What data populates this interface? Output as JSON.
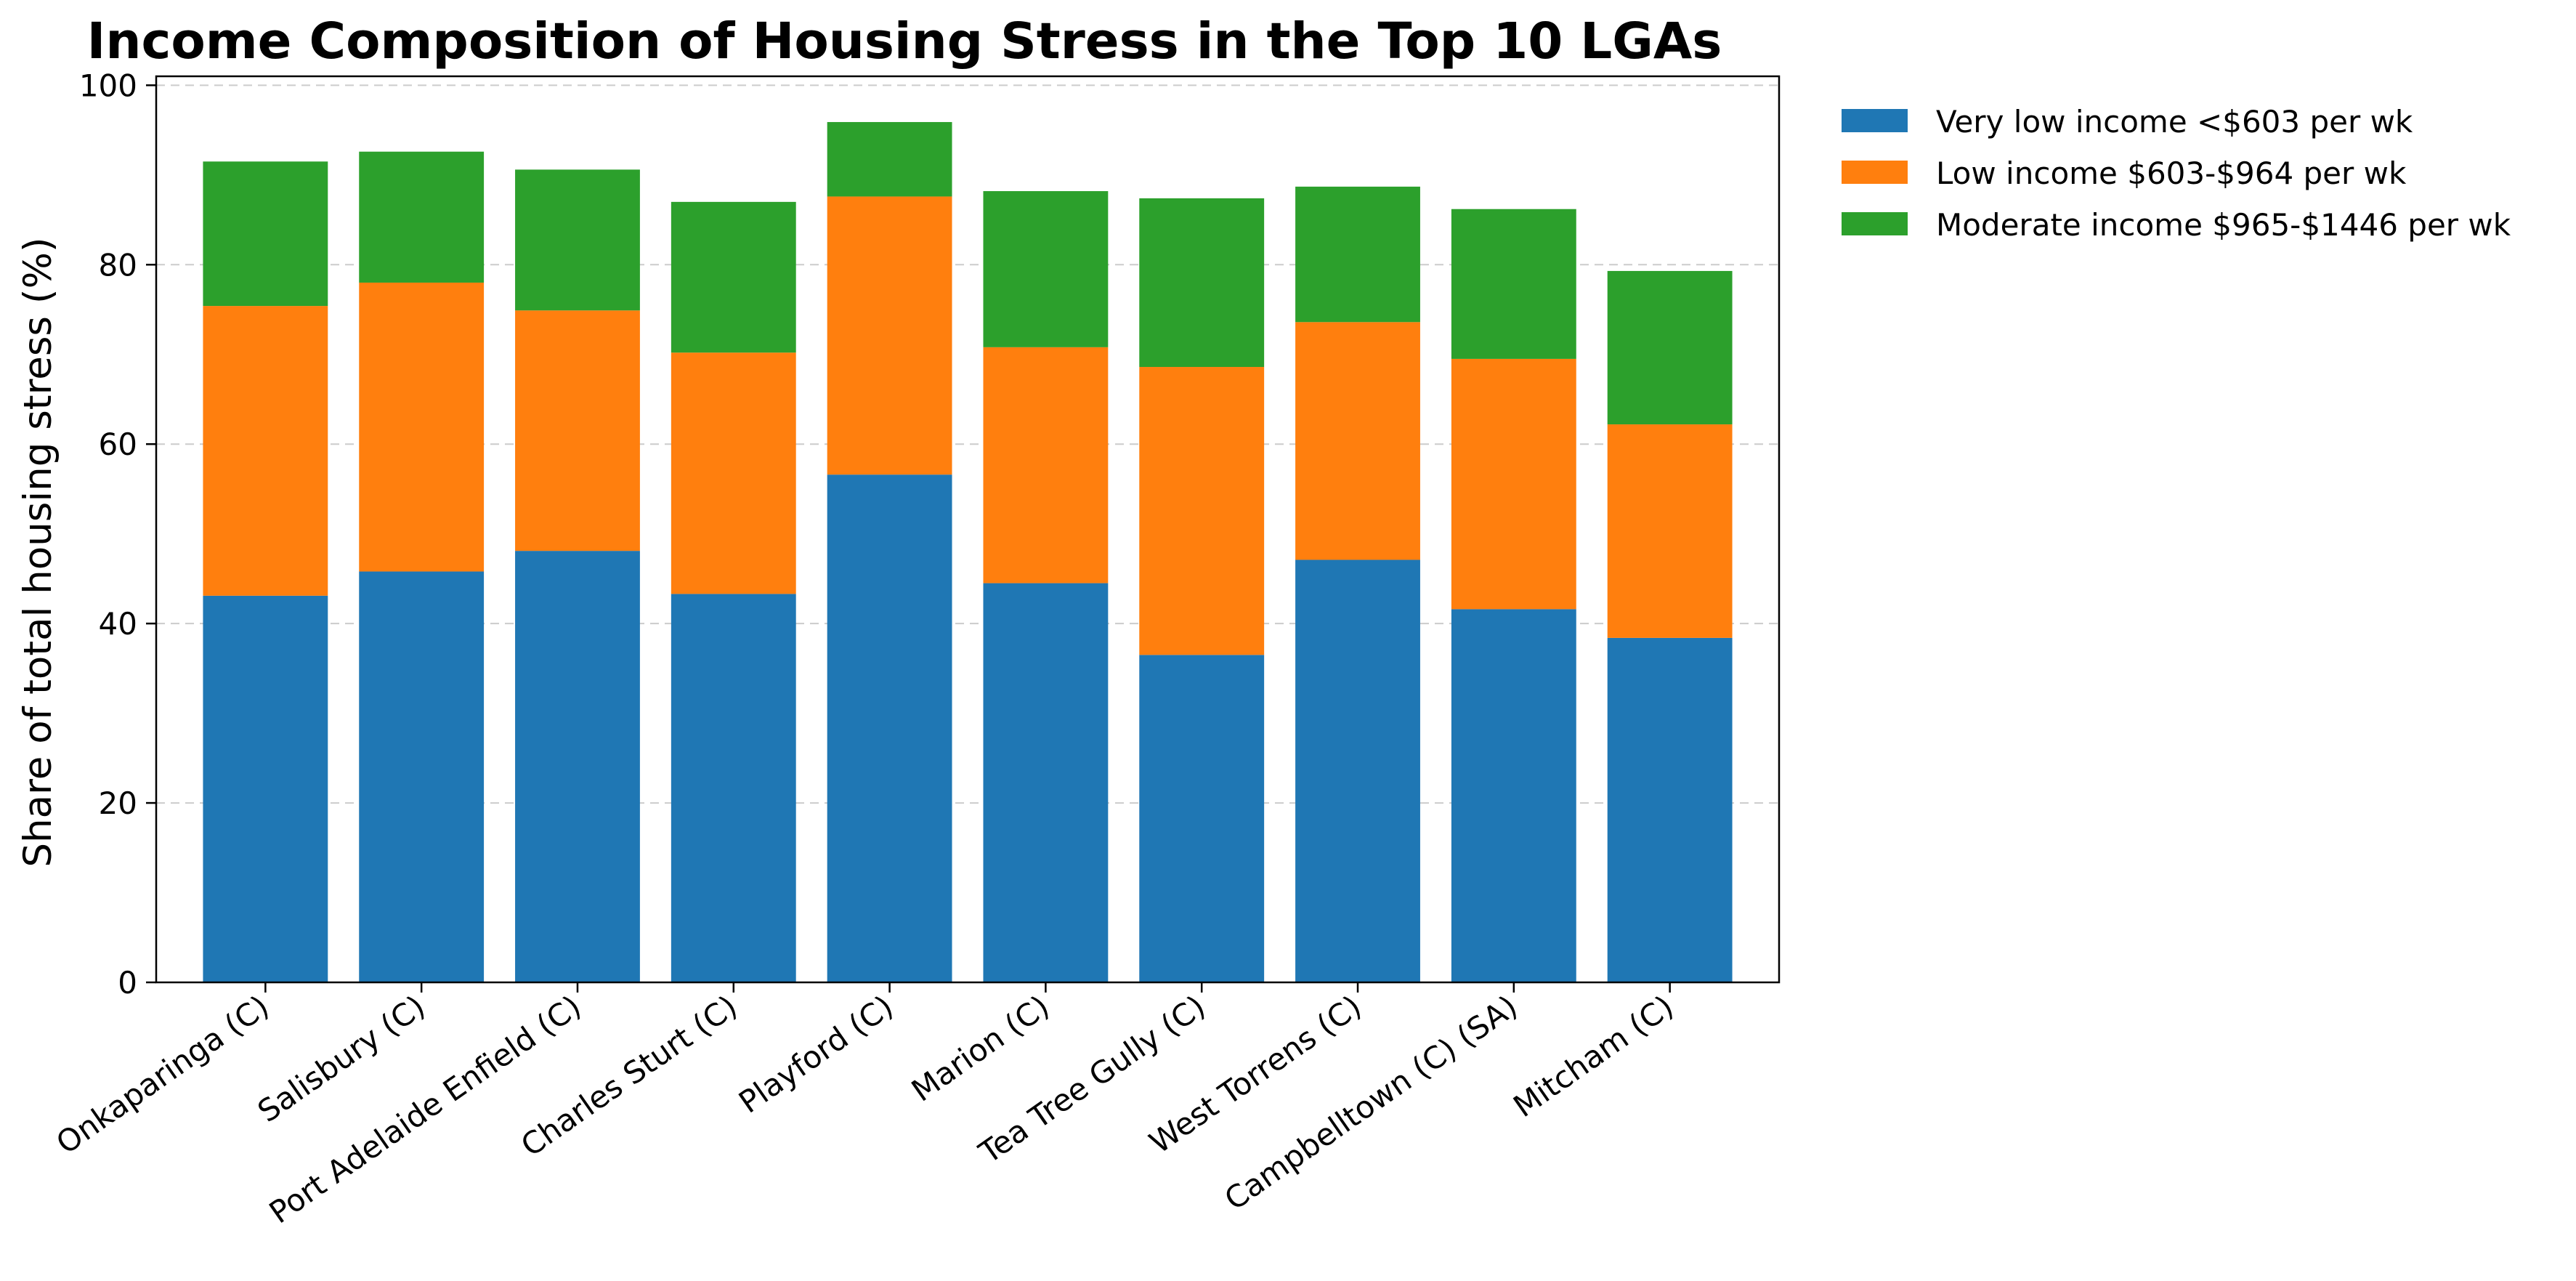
{
  "chart_data": {
    "type": "bar",
    "stacked": true,
    "title": "Income Composition of Housing Stress in the Top 10 LGAs",
    "xlabel": "",
    "ylabel": "Share of total housing stress (%)",
    "ylim": [
      0,
      101
    ],
    "yticks": [
      "0",
      "20",
      "40",
      "60",
      "80",
      "100"
    ],
    "grid": "horizontal dashed",
    "legend_position": "outside-top-right",
    "categories": [
      "Onkaparinga (C)",
      "Salisbury (C)",
      "Port Adelaide Enfield (C)",
      "Charles Sturt (C)",
      "Playford (C)",
      "Marion (C)",
      "Tea Tree Gully (C)",
      "West Torrens (C)",
      "Campbelltown (C) (SA)",
      "Mitcham (C)"
    ],
    "series": [
      {
        "name": "Very low income <$603 per wk",
        "color": "#1f77b4",
        "values": [
          43.1,
          45.8,
          48.1,
          43.3,
          56.6,
          44.5,
          36.5,
          47.1,
          41.6,
          38.4
        ]
      },
      {
        "name": "Low income $603-$964 per wk",
        "color": "#ff7f0e",
        "values": [
          32.3,
          32.2,
          26.8,
          26.9,
          31.0,
          26.3,
          32.1,
          26.5,
          27.9,
          23.8
        ]
      },
      {
        "name": "Moderate income $965-$1446 per wk",
        "color": "#2ca02c",
        "values": [
          16.1,
          14.6,
          15.7,
          16.8,
          8.3,
          17.4,
          18.8,
          15.1,
          16.7,
          17.1
        ]
      }
    ]
  }
}
